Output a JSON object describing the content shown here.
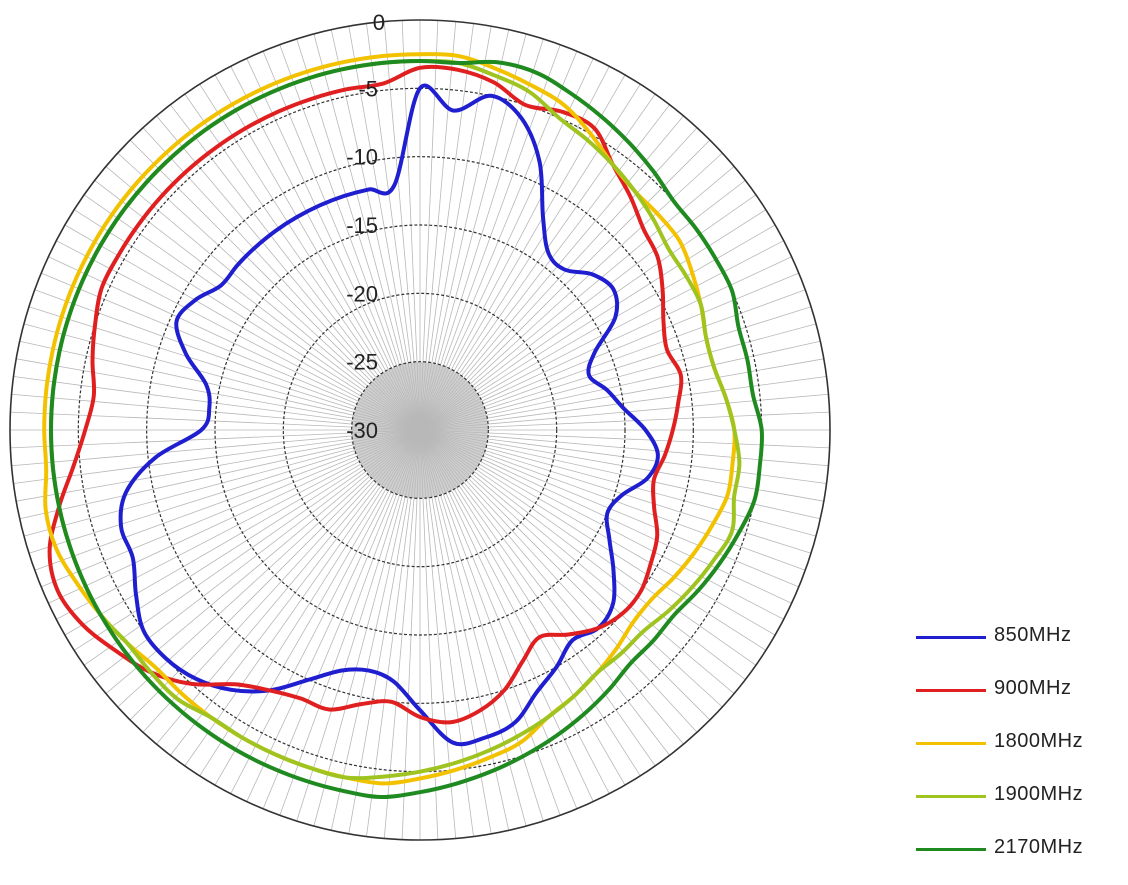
{
  "chart_data": {
    "type": "polar-line",
    "title": "",
    "radial_axis": {
      "min": -30,
      "max": 0,
      "tick_labels": [
        "0",
        "-5",
        "-10",
        "-15",
        "-20",
        "-25",
        "-30"
      ],
      "tick_values": [
        0,
        -5,
        -10,
        -15,
        -20,
        -25,
        -30
      ]
    },
    "angle_step_deg": 15,
    "angle_origin": "top",
    "angle_direction": "clockwise",
    "grid": true,
    "legend_position": "bottom-right",
    "series": [
      {
        "name": "850MHz",
        "color": "#1f1fd0",
        "values": [
          -5.0,
          -6.5,
          -5.0,
          -6.0,
          -8.5,
          -12.0,
          -14.0,
          -14.2,
          -13.0,
          -12.5,
          -13.5,
          -16.0,
          -17.0,
          -16.0,
          -15.0,
          -13.5,
          -12.5,
          -13.0,
          -14.5,
          -15.0,
          -14.0,
          -12.5,
          -11.0,
          -10.5,
          -11.0,
          -10.0,
          -9.0,
          -7.5,
          -7.0,
          -7.0,
          -9.5,
          -11.5,
          -12.0,
          -11.5,
          -10.0,
          -8.0,
          -6.5,
          -5.5,
          -5.0,
          -5.0,
          -6.0,
          -7.0,
          -7.0,
          -8.0,
          -10.5,
          -14.0,
          -14.5,
          -14.0,
          -12.0,
          -10.5,
          -11.0,
          -12.0,
          -12.0,
          -12.0,
          -12.0,
          -12.0,
          -12.0,
          -12.0,
          -12.0,
          -12.0
        ]
      },
      {
        "name": "900MHz",
        "color": "#e02020",
        "values": [
          -3.5,
          -3.5,
          -4.0,
          -5.0,
          -4.5,
          -4.5,
          -6.0,
          -7.0,
          -8.0,
          -8.5,
          -9.5,
          -10.5,
          -11.0,
          -10.5,
          -11.0,
          -11.5,
          -12.0,
          -12.5,
          -12.0,
          -11.0,
          -10.5,
          -10.0,
          -10.0,
          -10.5,
          -11.5,
          -12.5,
          -11.5,
          -10.0,
          -9.0,
          -8.5,
          -9.0,
          -10.0,
          -9.5,
          -8.5,
          -8.5,
          -8.0,
          -7.0,
          -5.0,
          -3.5,
          -2.5,
          -1.5,
          -1.0,
          -1.5,
          -3.0,
          -4.5,
          -5.5,
          -6.0,
          -5.5,
          -5.0,
          -4.5,
          -4.5,
          -4.5,
          -4.5,
          -4.5,
          -4.5,
          -4.5,
          -4.5,
          -4.5,
          -4.5,
          -4.5
        ]
      },
      {
        "name": "1800MHz",
        "color": "#f2c200",
        "values": [
          -2.5,
          -2.5,
          -3.0,
          -3.5,
          -4.0,
          -5.0,
          -6.0,
          -6.5,
          -6.5,
          -6.5,
          -7.0,
          -7.5,
          -8.0,
          -8.0,
          -7.5,
          -7.0,
          -7.0,
          -7.0,
          -7.5,
          -8.0,
          -8.5,
          -9.0,
          -9.0,
          -8.5,
          -8.0,
          -7.5,
          -7.0,
          -6.0,
          -5.5,
          -5.0,
          -4.5,
          -4.0,
          -4.0,
          -4.0,
          -4.0,
          -4.0,
          -4.0,
          -4.0,
          -4.0,
          -3.5,
          -3.0,
          -2.5,
          -2.0,
          -2.0,
          -2.5,
          -2.5,
          -2.5,
          -2.5,
          -2.5,
          -2.5,
          -2.5,
          -2.5,
          -2.5,
          -2.5,
          -2.5,
          -2.5,
          -2.5,
          -2.5,
          -2.5,
          -2.5
        ]
      },
      {
        "name": "1900MHz",
        "color": "#9fc420",
        "values": [
          -3.0,
          -3.0,
          -3.5,
          -4.0,
          -5.0,
          -5.5,
          -6.0,
          -6.5,
          -7.0,
          -7.5,
          -7.5,
          -7.5,
          -8.0,
          -8.0,
          -7.5,
          -7.0,
          -6.5,
          -6.5,
          -6.0,
          -6.5,
          -7.0,
          -7.5,
          -8.0,
          -8.0,
          -8.0,
          -7.5,
          -7.0,
          -6.5,
          -6.0,
          -5.5,
          -5.0,
          -4.5,
          -4.0,
          -4.0,
          -4.0,
          -4.0,
          -4.0,
          -3.5,
          -3.5,
          -3.5,
          -3.0,
          -3.0,
          -3.0,
          -3.0,
          -3.0,
          -3.0,
          -3.0,
          -3.0,
          -3.0,
          -3.0,
          -3.0,
          -3.0,
          -3.0,
          -3.0,
          -3.0,
          -3.0,
          -3.0,
          -3.0,
          -3.0,
          -3.0
        ]
      },
      {
        "name": "2170MHz",
        "color": "#1f8a1f",
        "values": [
          -3.0,
          -3.0,
          -2.5,
          -2.5,
          -3.0,
          -3.5,
          -4.0,
          -4.5,
          -5.0,
          -5.0,
          -5.0,
          -5.0,
          -5.5,
          -5.5,
          -5.5,
          -5.0,
          -5.0,
          -5.0,
          -5.5,
          -6.0,
          -6.5,
          -7.0,
          -7.0,
          -7.0,
          -6.5,
          -6.0,
          -5.5,
          -5.0,
          -4.5,
          -4.0,
          -3.5,
          -3.0,
          -3.0,
          -3.0,
          -3.0,
          -3.0,
          -3.0,
          -3.0,
          -3.0,
          -3.0,
          -3.0,
          -3.0,
          -3.0,
          -3.0,
          -3.0,
          -3.0,
          -3.0,
          -3.0,
          -3.0,
          -3.0,
          -3.0,
          -3.0,
          -3.0,
          -3.0,
          -3.0,
          -3.0,
          -3.0,
          -3.0,
          -3.0,
          -3.0
        ]
      }
    ]
  }
}
